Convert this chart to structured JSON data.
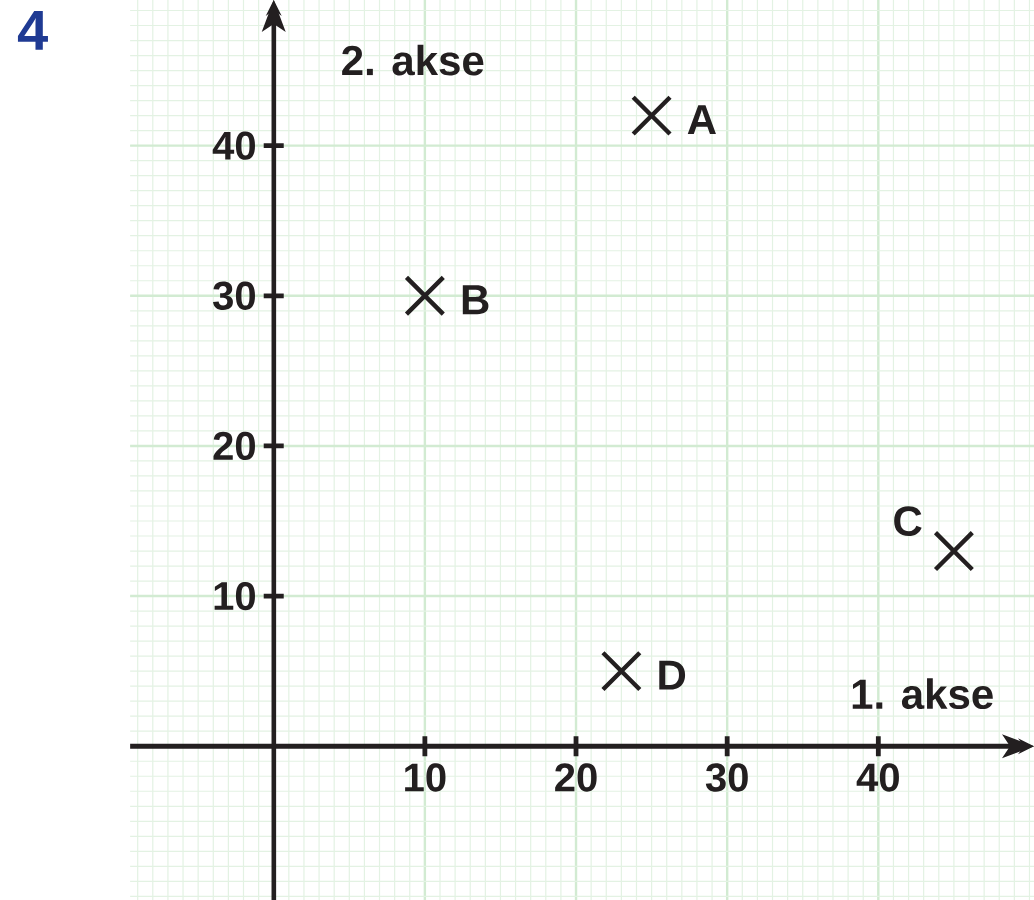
{
  "chart_data": {
    "type": "scatter",
    "xlabel": "1. akse",
    "ylabel": "2. akse",
    "x": [
      25,
      10,
      45,
      23
    ],
    "values": [
      42,
      30,
      13,
      5
    ],
    "color": "#231f20",
    "marker": "cross",
    "xlim": [
      -9.5,
      50.3
    ],
    "ylim": [
      -10.3,
      49.7
    ],
    "xticks": [
      10,
      20,
      30,
      40
    ],
    "yticks": [
      10,
      20,
      30,
      40
    ],
    "grid": true,
    "annotations": [
      "4",
      {
        "text": "A",
        "x": 25,
        "y": 42
      },
      {
        "text": "B",
        "x": 10,
        "y": 30
      },
      {
        "text": "C",
        "x": 45,
        "y": 13
      },
      {
        "text": "D",
        "x": 23,
        "y": 5
      }
    ]
  }
}
